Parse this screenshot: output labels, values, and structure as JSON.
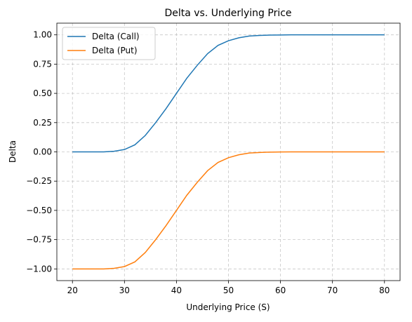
{
  "chart_data": {
    "type": "line",
    "title": "Delta vs. Underlying Price",
    "xlabel": "Underlying Price (S)",
    "ylabel": "Delta",
    "xlim": [
      17,
      83
    ],
    "ylim": [
      -1.1,
      1.1
    ],
    "x_ticks": [
      20,
      30,
      40,
      50,
      60,
      70,
      80
    ],
    "y_ticks": [
      -1.0,
      -0.75,
      -0.5,
      -0.25,
      0.0,
      0.25,
      0.5,
      0.75,
      1.0
    ],
    "x_tick_labels": [
      "20",
      "30",
      "40",
      "50",
      "60",
      "70",
      "80"
    ],
    "y_tick_labels": [
      "−1.00",
      "−0.75",
      "−0.50",
      "−0.25",
      "0.00",
      "0.25",
      "0.50",
      "0.75",
      "1.00"
    ],
    "grid": true,
    "legend_position": "top-left",
    "x": [
      20,
      22,
      24,
      26,
      28,
      30,
      32,
      34,
      36,
      38,
      40,
      42,
      44,
      46,
      48,
      50,
      52,
      54,
      56,
      58,
      60,
      62,
      64,
      66,
      68,
      70,
      72,
      74,
      76,
      78,
      80
    ],
    "series": [
      {
        "name": "Delta (Call)",
        "color": "#1f77b4",
        "values": [
          0.0,
          0.0,
          0.0,
          0.0,
          0.005,
          0.02,
          0.06,
          0.14,
          0.25,
          0.37,
          0.5,
          0.63,
          0.74,
          0.84,
          0.91,
          0.95,
          0.975,
          0.99,
          0.995,
          0.998,
          0.999,
          1.0,
          1.0,
          1.0,
          1.0,
          1.0,
          1.0,
          1.0,
          1.0,
          1.0,
          1.0
        ]
      },
      {
        "name": "Delta (Put)",
        "color": "#ff7f0e",
        "values": [
          -1.0,
          -1.0,
          -1.0,
          -1.0,
          -0.995,
          -0.98,
          -0.94,
          -0.86,
          -0.75,
          -0.63,
          -0.5,
          -0.37,
          -0.26,
          -0.16,
          -0.09,
          -0.05,
          -0.025,
          -0.01,
          -0.005,
          -0.002,
          -0.001,
          0.0,
          0.0,
          0.0,
          0.0,
          0.0,
          0.0,
          0.0,
          0.0,
          0.0,
          0.0
        ]
      }
    ]
  }
}
